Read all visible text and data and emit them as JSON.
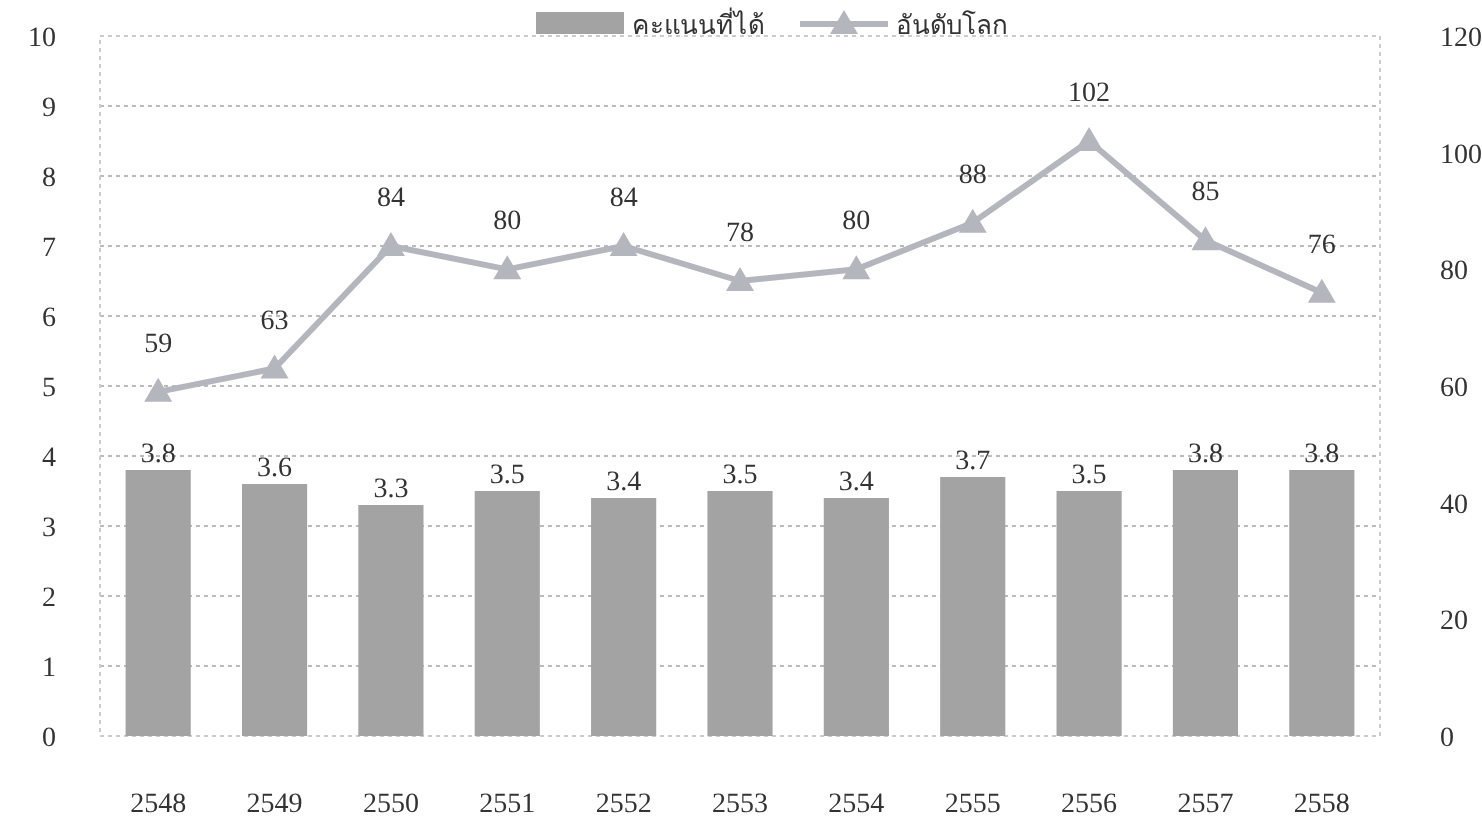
{
  "chart_data": {
    "type": "bar",
    "categories": [
      "2548",
      "2549",
      "2550",
      "2551",
      "2552",
      "2553",
      "2554",
      "2555",
      "2556",
      "2557",
      "2558"
    ],
    "series": [
      {
        "name": "คะแนนที่ได้",
        "color": "#a3a3a3",
        "values": [
          3.8,
          3.6,
          3.3,
          3.5,
          3.4,
          3.5,
          3.4,
          3.7,
          3.5,
          3.8,
          3.8
        ]
      },
      {
        "name": "อันดับโลก",
        "type": "line",
        "axis": "y2",
        "color": "#b4b6bd",
        "marker": "triangle",
        "values": [
          59,
          63,
          84,
          80,
          84,
          78,
          80,
          88,
          102,
          85,
          76
        ]
      }
    ],
    "ylim": [
      0,
      10
    ],
    "yticks": [
      0,
      1,
      2,
      3,
      4,
      5,
      6,
      7,
      8,
      9,
      10
    ],
    "y2lim": [
      0,
      120
    ],
    "y2ticks": [
      0,
      20,
      40,
      60,
      80,
      100,
      120
    ],
    "grid": "y",
    "legend": "top",
    "data_labels": true
  }
}
